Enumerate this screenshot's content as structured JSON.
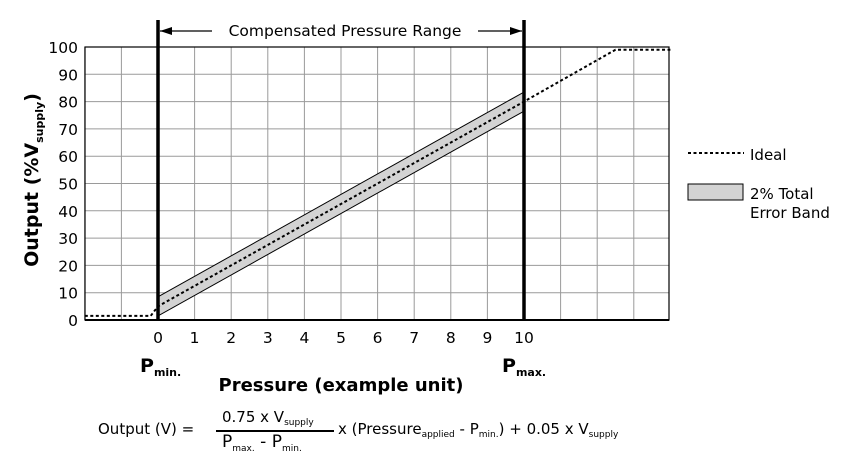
{
  "chart_data": {
    "type": "line",
    "title": "Compensated Pressure Range",
    "xlabel": "Pressure (example unit)",
    "ylabel": "Output (%V",
    "ylabel_sub": "supply",
    "ylabel_close": ")",
    "x_tick_labels": [
      "0",
      "1",
      "2",
      "3",
      "4",
      "5",
      "6",
      "7",
      "8",
      "9",
      "10"
    ],
    "y_tick_labels": [
      "0",
      "10",
      "20",
      "30",
      "40",
      "50",
      "60",
      "70",
      "80",
      "90",
      "100"
    ],
    "xlim": [
      -2,
      14
    ],
    "ylim": [
      0,
      100
    ],
    "grid": true,
    "markers": [
      {
        "label": "P",
        "sub": "min.",
        "x": 0
      },
      {
        "label": "P",
        "sub": "max.",
        "x": 10
      }
    ],
    "series": [
      {
        "name": "Ideal",
        "style": "dotted",
        "x": [
          -2,
          -0.2,
          0,
          10,
          12.5,
          14
        ],
        "y": [
          1.5,
          1.5,
          5,
          80,
          99,
          99
        ]
      },
      {
        "name": "2% Total Error Band",
        "style": "band",
        "x": [
          0,
          10
        ],
        "y": [
          5,
          80
        ],
        "error_percent": 2
      }
    ],
    "legend_position": "right"
  },
  "legend": {
    "ideal": "Ideal",
    "band_line1": "2% Total",
    "band_line2": "Error Band"
  },
  "formula": {
    "lhs": "Output (V) =",
    "num_a": "0.75 x V",
    "num_sub": "supply",
    "den_p1": "P",
    "den_sub1": "max.",
    "den_minus": " - ",
    "den_p2": "P",
    "den_sub2": "min.",
    "mid": "x (Pressure",
    "mid_sub": "applied",
    "mid2": " - P",
    "mid_sub2": "min.",
    "tail": ") + 0.05 x V",
    "tail_sub": "supply"
  },
  "colors": {
    "band_fill": "#d3d3d3",
    "grid": "#999999",
    "axis": "#000000"
  }
}
